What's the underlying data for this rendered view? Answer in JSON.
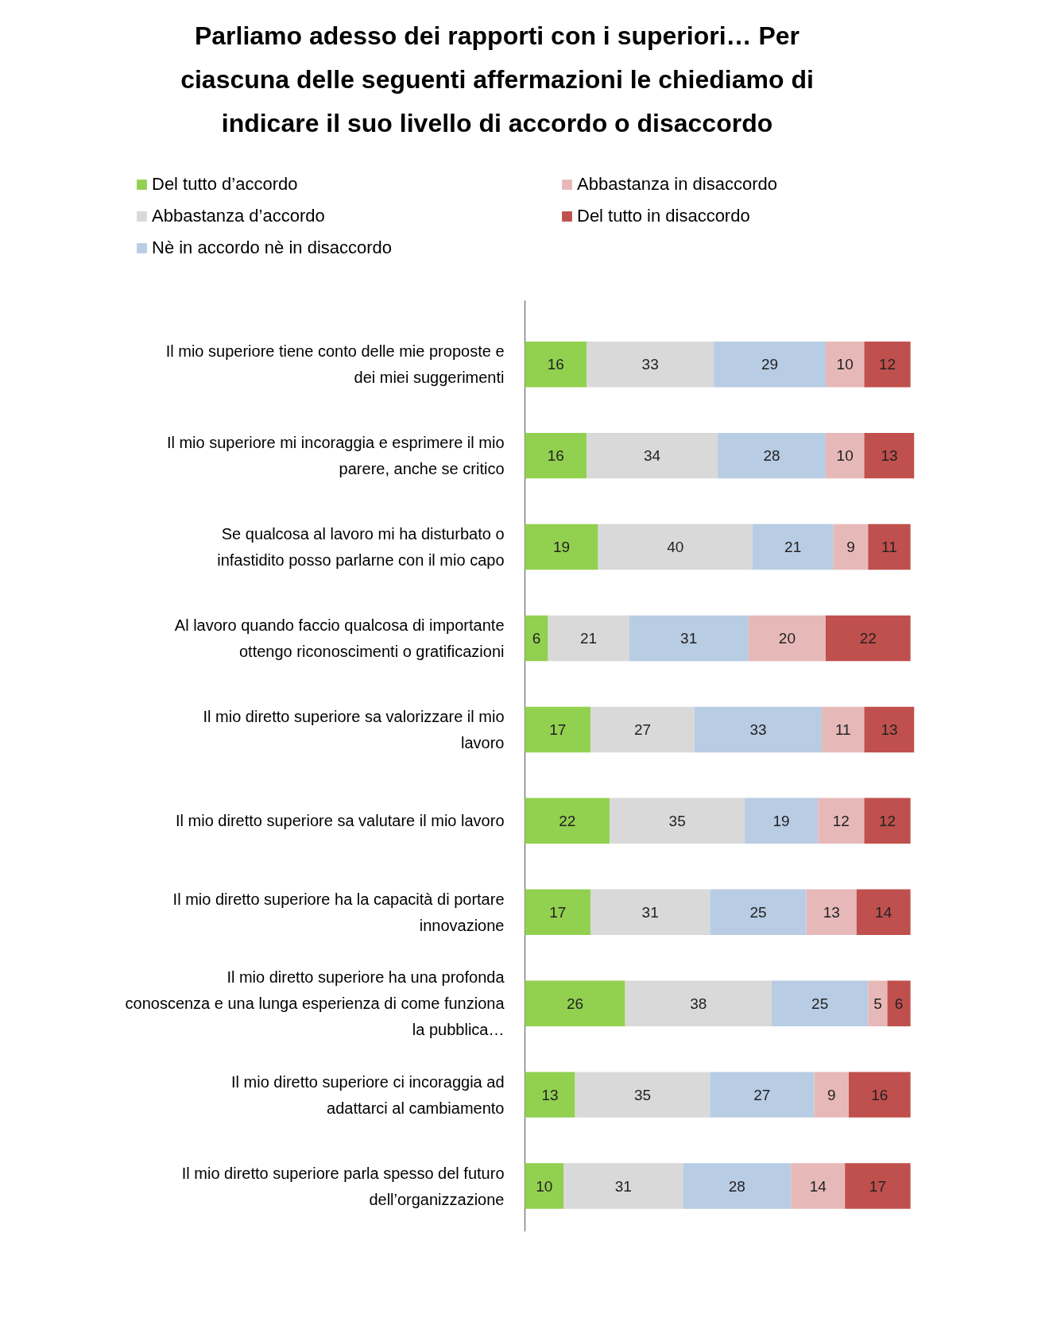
{
  "chart_data": {
    "type": "bar",
    "orientation": "horizontal",
    "stacked": true,
    "data_labels": true,
    "legend": "top",
    "grid": false,
    "title": "Parliamo adesso dei rapporti con i superiori… Per ciascuna delle seguenti affermazioni le chiediamo di indicare il suo livello di accordo o disaccordo",
    "categories": [
      "Il mio superiore tiene conto delle mie proposte e dei miei suggerimenti",
      "Il mio superiore mi incoraggia e esprimere il mio parere, anche se critico",
      "Se qualcosa al lavoro mi ha disturbato o infastidito posso parlarne con il mio capo",
      "Al lavoro quando faccio qualcosa di importante ottengo riconoscimenti o gratificazioni",
      "Il mio diretto superiore sa valorizzare il mio lavoro",
      "Il mio diretto superiore sa valutare il mio lavoro",
      "Il mio diretto superiore ha la capacità di portare innovazione",
      "Il mio diretto superiore ha una profonda conoscenza e una lunga esperienza di come funziona la pubblica…",
      "Il mio diretto superiore ci incoraggia ad adattarci al cambiamento",
      "Il mio diretto superiore parla spesso del futuro dell’organizzazione"
    ],
    "series": [
      {
        "name": "Del tutto d’accordo",
        "color": "#92d050",
        "values": [
          16,
          16,
          19,
          6,
          17,
          22,
          17,
          26,
          13,
          10
        ]
      },
      {
        "name": "Abbastanza d’accordo",
        "color": "#d9d9d9",
        "values": [
          33,
          34,
          40,
          21,
          27,
          35,
          31,
          38,
          35,
          31
        ]
      },
      {
        "name": "Nè in accordo nè in disaccordo",
        "color": "#b8cce4",
        "values": [
          29,
          28,
          21,
          31,
          33,
          19,
          25,
          25,
          27,
          28
        ]
      },
      {
        "name": "Abbastanza in disaccordo",
        "color": "#e6b9b8",
        "values": [
          10,
          10,
          9,
          20,
          11,
          12,
          13,
          5,
          9,
          14
        ]
      },
      {
        "name": "Del tutto in disaccordo",
        "color": "#c0504d",
        "values": [
          12,
          13,
          11,
          22,
          13,
          12,
          14,
          6,
          16,
          17
        ]
      }
    ]
  }
}
